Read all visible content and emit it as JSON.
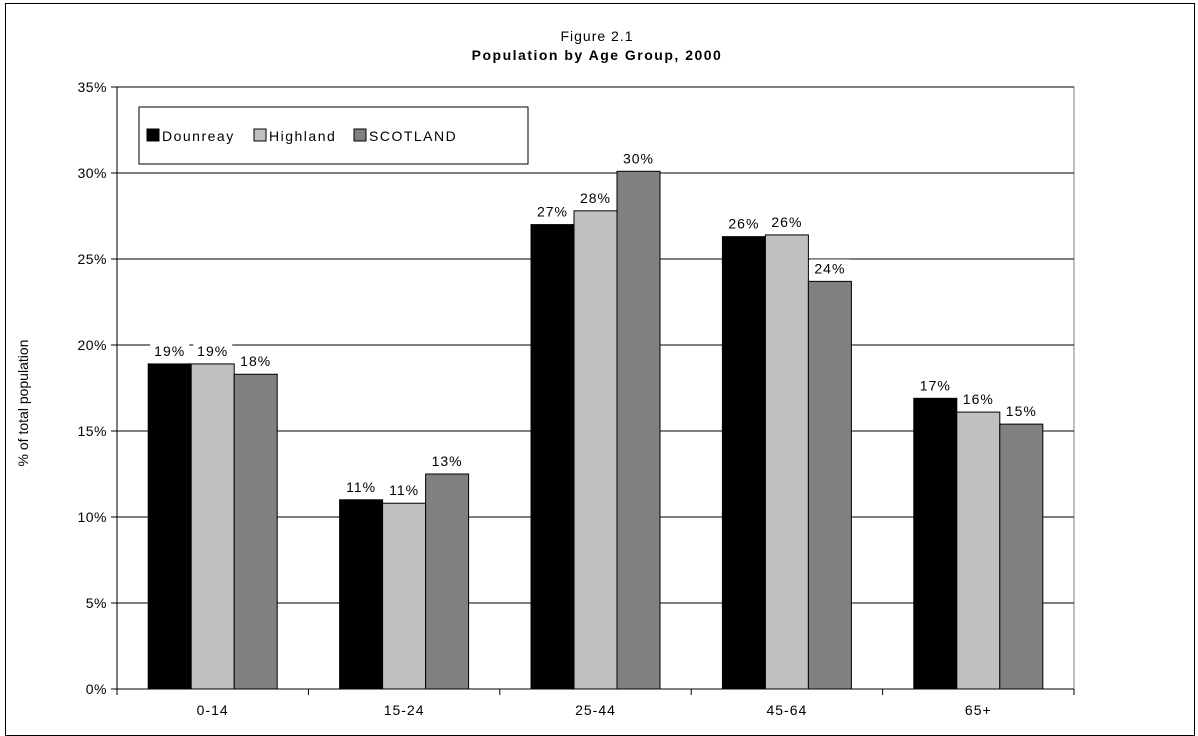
{
  "chart_data": {
    "type": "bar",
    "title_line1": "Figure 2.1",
    "title": "Population by Age Group, 2000",
    "xlabel": "",
    "ylabel": "% of total population",
    "ylim": [
      0,
      35
    ],
    "yticks": [
      "0%",
      "5%",
      "10%",
      "15%",
      "20%",
      "25%",
      "30%",
      "35%"
    ],
    "grid": "horizontal",
    "legend_position": "top-left",
    "categories": [
      "0-14",
      "15-24",
      "25-44",
      "45-64",
      "65+"
    ],
    "series": [
      {
        "name": "Dounreay",
        "color": "#000000",
        "values": [
          18.9,
          11.0,
          27.0,
          26.3,
          16.9
        ],
        "labels": [
          "19%",
          "11%",
          "27%",
          "26%",
          "17%"
        ]
      },
      {
        "name": "Highland",
        "color": "#c0c0c0",
        "values": [
          18.9,
          10.8,
          27.8,
          26.4,
          16.1
        ],
        "labels": [
          "19%",
          "11%",
          "28%",
          "26%",
          "16%"
        ]
      },
      {
        "name": "SCOTLAND",
        "color": "#808080",
        "values": [
          18.3,
          12.5,
          30.1,
          23.7,
          15.4
        ],
        "labels": [
          "18%",
          "13%",
          "30%",
          "24%",
          "15%"
        ]
      }
    ]
  }
}
